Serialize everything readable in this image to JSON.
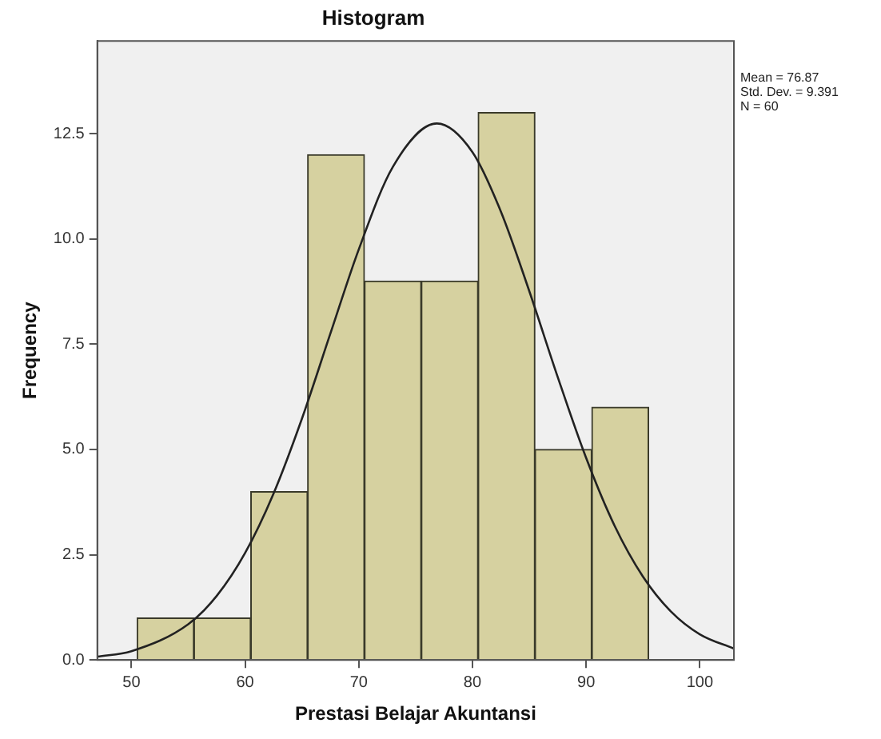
{
  "chart_data": {
    "type": "histogram",
    "title": "Histogram",
    "xlabel": "Prestasi Belajar Akuntansi",
    "ylabel": "Frequency",
    "bins": [
      50.5,
      55.5,
      60.5,
      65.5,
      70.5,
      75.5,
      80.5,
      85.5,
      90.5,
      95.5
    ],
    "values": [
      1,
      1,
      4,
      12,
      9,
      9,
      13,
      5,
      6
    ],
    "color": "#d6d1a0",
    "series": [
      {
        "type": "line",
        "color": "#222222",
        "x": [
          47,
          50,
          55,
          57.5,
          60,
          62.5,
          65,
          67.5,
          70,
          73,
          76.87,
          80,
          82.5,
          85,
          87.5,
          90,
          92.5,
          95,
          97.5,
          100,
          103
        ],
        "values": [
          0.08,
          0.21,
          0.85,
          1.52,
          2.54,
          3.95,
          5.73,
          7.75,
          9.75,
          11.71,
          12.74,
          12.06,
          10.65,
          8.76,
          6.72,
          4.8,
          3.19,
          1.98,
          1.14,
          0.61,
          0.27
        ]
      }
    ],
    "xlim": [
      47,
      103
    ],
    "xticks": [
      50,
      60,
      70,
      80,
      90,
      100
    ],
    "ylim": [
      0,
      14.7
    ],
    "yticks": [
      {
        "value": 0,
        "label": "0.0"
      },
      {
        "value": 2.5,
        "label": "2.5"
      },
      {
        "value": 5,
        "label": "5.0"
      },
      {
        "value": 7.5,
        "label": "7.5"
      },
      {
        "value": 10,
        "label": "10.0"
      },
      {
        "value": 12.5,
        "label": "12.5"
      }
    ],
    "grid": false,
    "legend": false,
    "marker": "none",
    "annotations": [
      "Mean = 76.87",
      "Std. Dev. = 9.391",
      "N = 60"
    ]
  }
}
